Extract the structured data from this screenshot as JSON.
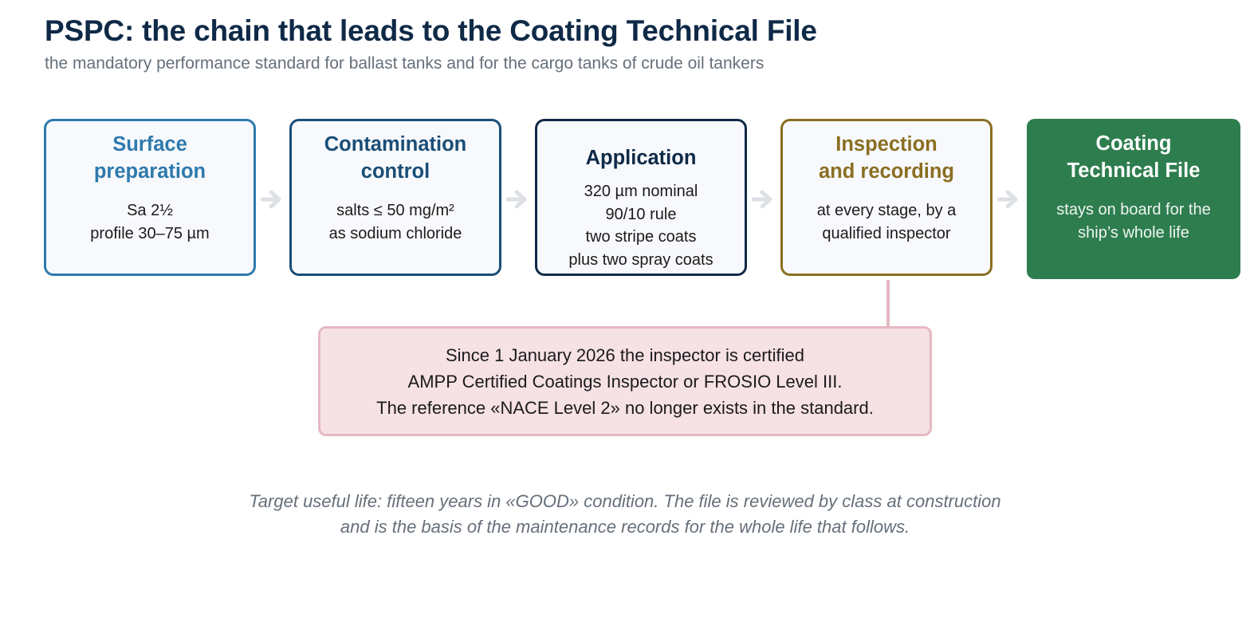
{
  "header": {
    "title": "PSPC: the chain that leads to the Coating Technical File",
    "subtitle": "the mandatory performance standard for ballast tanks and for the cargo tanks of crude oil tankers"
  },
  "steps": [
    {
      "title": [
        "Surface",
        "preparation"
      ],
      "body": [
        "Sa 2½",
        "profile 30–75 µm"
      ],
      "color": "#2e7aad"
    },
    {
      "title": [
        "Contamination",
        "control"
      ],
      "body": [
        "salts ≤ 50 mg/m²",
        "as sodium chloride"
      ],
      "color": "#1a4e77"
    },
    {
      "title": [
        "Application"
      ],
      "body": [
        "320 µm nominal",
        "90/10 rule",
        "two stripe coats",
        "plus two spray coats"
      ],
      "color": "#0f2a47"
    },
    {
      "title": [
        "Inspection",
        "and recording"
      ],
      "body": [
        "at every stage, by a",
        "qualified inspector"
      ],
      "color": "#8a6e21"
    },
    {
      "title": [
        "Coating",
        "Technical File"
      ],
      "body": [
        "stays on board for the",
        "ship’s whole life"
      ],
      "color": "#2e7d4f"
    }
  ],
  "note": {
    "lines": [
      "Since 1 January 2026 the inspector is certified",
      "AMPP Certified Coatings Inspector or FROSIO Level III.",
      "The reference «NACE Level 2» no longer exists in the standard."
    ]
  },
  "footer": {
    "lines": [
      "Target useful life: fifteen years in «GOOD» condition. The file is reviewed by class at construction",
      "and is the basis of the maintenance records for the whole life that follows."
    ]
  },
  "colors": {
    "arrow": "#dde1e6",
    "note_border": "#e6b8c2",
    "note_fill": "#f6e1e5"
  }
}
